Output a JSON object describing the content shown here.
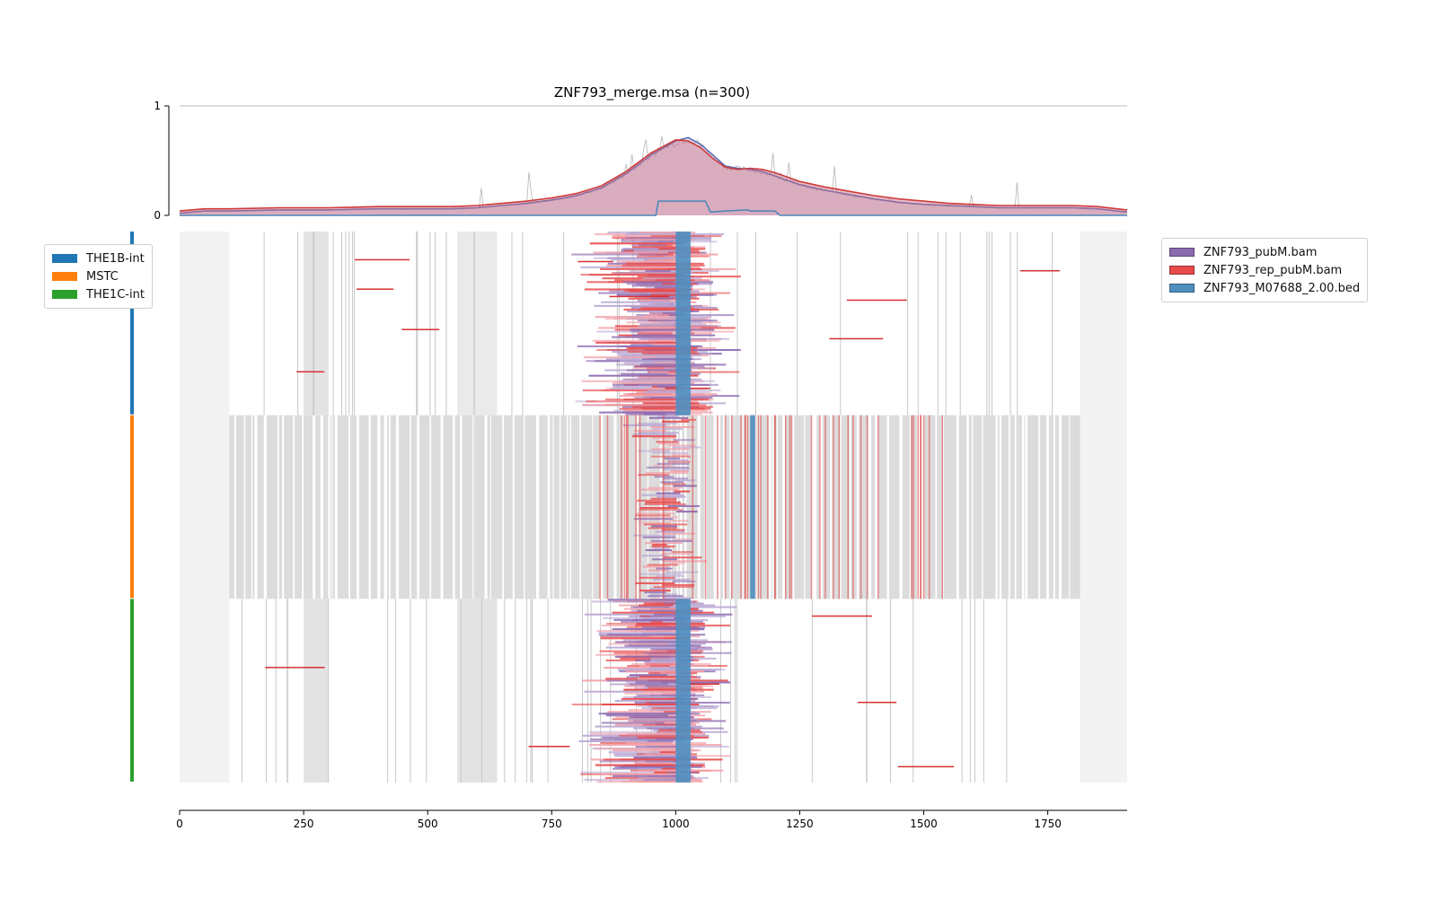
{
  "chart_data": [
    {
      "type": "area",
      "title": "ZNF793_merge.msa (n=300)",
      "xlim": [
        0,
        1910
      ],
      "ylim": [
        0,
        1
      ],
      "yticks": [
        "0",
        "1"
      ],
      "grid": false,
      "series": [
        {
          "name": "ZNF793_pubM.bam",
          "color": "#5b6fb5",
          "x": [
            0,
            50,
            100,
            200,
            300,
            400,
            500,
            550,
            600,
            650,
            700,
            750,
            800,
            850,
            900,
            950,
            1000,
            1025,
            1050,
            1075,
            1100,
            1125,
            1150,
            1175,
            1200,
            1225,
            1250,
            1300,
            1350,
            1400,
            1450,
            1500,
            1550,
            1600,
            1650,
            1700,
            1750,
            1800,
            1850,
            1910
          ],
          "values": [
            0.02,
            0.04,
            0.04,
            0.05,
            0.05,
            0.06,
            0.06,
            0.06,
            0.07,
            0.09,
            0.11,
            0.14,
            0.18,
            0.25,
            0.38,
            0.55,
            0.68,
            0.71,
            0.65,
            0.55,
            0.45,
            0.43,
            0.42,
            0.4,
            0.36,
            0.32,
            0.28,
            0.23,
            0.19,
            0.15,
            0.12,
            0.1,
            0.09,
            0.08,
            0.07,
            0.07,
            0.07,
            0.07,
            0.06,
            0.03
          ]
        },
        {
          "name": "ZNF793_rep_pubM.bam",
          "color": "#d03a3a",
          "x": [
            0,
            50,
            100,
            200,
            300,
            400,
            500,
            550,
            600,
            650,
            700,
            750,
            800,
            850,
            900,
            950,
            1000,
            1025,
            1050,
            1075,
            1100,
            1125,
            1150,
            1175,
            1200,
            1225,
            1250,
            1300,
            1350,
            1400,
            1450,
            1500,
            1550,
            1600,
            1650,
            1700,
            1750,
            1800,
            1850,
            1910
          ],
          "values": [
            0.04,
            0.06,
            0.06,
            0.07,
            0.07,
            0.08,
            0.08,
            0.08,
            0.09,
            0.11,
            0.13,
            0.16,
            0.2,
            0.27,
            0.4,
            0.57,
            0.69,
            0.68,
            0.62,
            0.52,
            0.44,
            0.42,
            0.43,
            0.42,
            0.39,
            0.35,
            0.31,
            0.26,
            0.22,
            0.18,
            0.15,
            0.13,
            0.11,
            0.1,
            0.09,
            0.09,
            0.09,
            0.09,
            0.08,
            0.05
          ]
        },
        {
          "name": "ZNF793_M07688_2.00.bed",
          "color": "#4a86b8",
          "x": [
            0,
            960,
            965,
            1000,
            1060,
            1070,
            1100,
            1145,
            1150,
            1200,
            1210,
            1910
          ],
          "values": [
            0,
            0,
            0.13,
            0.13,
            0.13,
            0.03,
            0.04,
            0.05,
            0.04,
            0.04,
            0,
            0
          ]
        }
      ]
    },
    {
      "type": "heatmap",
      "rows": 300,
      "xlim": [
        0,
        1910
      ],
      "xticks": [
        "0",
        "250",
        "500",
        "750",
        "1000",
        "1250",
        "1500",
        "1750"
      ],
      "groups": [
        {
          "name": "THE1B-int",
          "color": "#1f77b4",
          "rows": [
            0,
            100
          ]
        },
        {
          "name": "MSTC",
          "color": "#ff7f0e",
          "rows": [
            100,
            200
          ]
        },
        {
          "name": "THE1C-int",
          "color": "#2ca02c",
          "rows": [
            200,
            300
          ]
        }
      ],
      "series": [
        {
          "name": "ZNF793_pubM.bam",
          "color": "#8c6bb1"
        },
        {
          "name": "ZNF793_rep_pubM.bam",
          "color": "#e84a4a"
        },
        {
          "name": "ZNF793_M07688_2.00.bed",
          "color": "#4f8fc0"
        }
      ],
      "motif_columns": {
        "THE1B-int": [
          1000,
          1030
        ],
        "MSTC": [
          1150,
          1160
        ],
        "THE1C-int": [
          1000,
          1030
        ]
      },
      "signal_center": 1030,
      "flank_columns": [
        [
          0,
          100
        ],
        [
          1815,
          1910
        ]
      ],
      "colors": {
        "gap": "#dcdcdc",
        "flank": "#f2f2f2",
        "background": "#ffffff"
      }
    }
  ]
}
